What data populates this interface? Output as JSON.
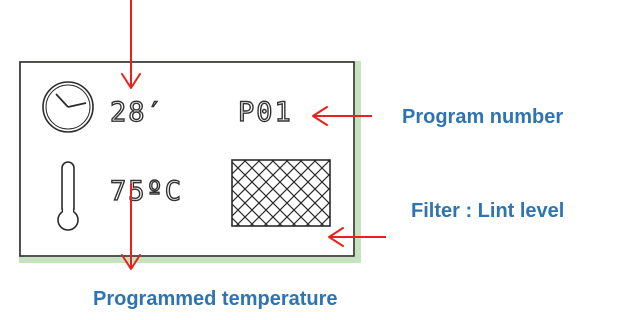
{
  "display": {
    "duration": "28′",
    "program": "P01",
    "temperature": "75ºC"
  },
  "callouts": {
    "program_number": "Program number",
    "filter_lint_level": "Filter : Lint level",
    "programmed_temperature": "Programmed temperature"
  },
  "icons": {
    "clock": "clock-icon",
    "thermometer": "thermometer-icon",
    "filter": "filter-mesh-icon"
  },
  "colors": {
    "arrow": "#e8211b",
    "callout_text": "#2e74b5",
    "lcd_outline": "#2b2b2b",
    "panel_shadow": "#b9d9b2"
  }
}
